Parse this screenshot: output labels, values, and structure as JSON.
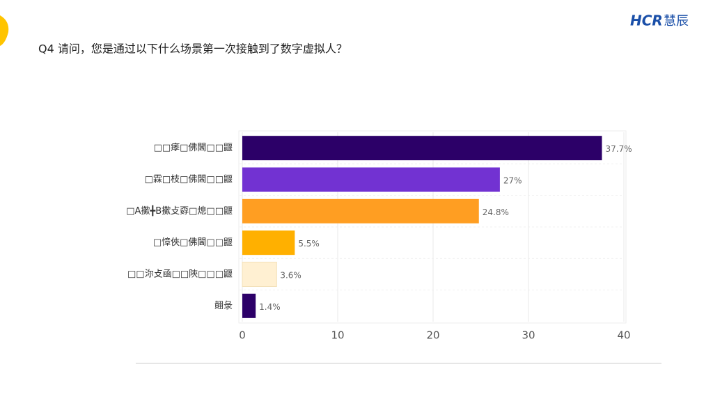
{
  "header": {
    "question": "Q4 请问，您是通过以下什么场景第一次接触到了数字虚拟人？",
    "logo_brand": "HCR",
    "logo_text": "慧辰"
  },
  "chart_data": {
    "type": "barh",
    "categories": [
      "□□痵□佛閪□□鼴",
      "□霖□枝□佛閪□□鼴",
      "□A擹╋B擹攴孬□熄□□鼴",
      "□慞俠□佛閪□□鼴",
      "□□沵攴凾□□陝□□□鼴",
      "翸彔"
    ],
    "values": [
      37.7,
      27,
      24.8,
      5.5,
      3.6,
      1.4
    ],
    "value_labels": [
      "37.7%",
      "27%",
      "24.8%",
      "5.5%",
      "3.6%",
      "1.4%"
    ],
    "colors": [
      "#2c0068",
      "#7232d2",
      "#ff9e22",
      "#ffb000",
      "#fff0d2",
      "#2c0068"
    ],
    "xlim": [
      0,
      40
    ],
    "xticks": [
      0,
      10,
      20,
      30,
      40
    ],
    "grid": true
  }
}
